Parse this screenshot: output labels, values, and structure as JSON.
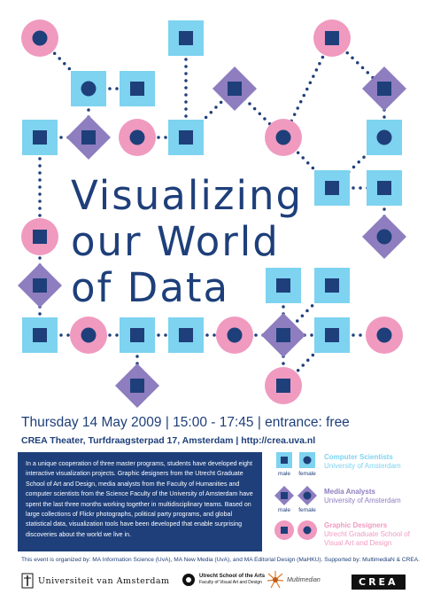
{
  "title_lines": [
    "Visualizing",
    "our World",
    "of Data"
  ],
  "event": {
    "date_time": "Thursday 14 May 2009 | 15:00 - 17:45 | entrance: free",
    "venue": "CREA Theater, Turfdraagsterpad 17, Amsterdam | http://crea.uva.nl"
  },
  "description": "In a unique cooperation of three master programs, students have developed eight interactive visualization projects. Graphic designers from the Utrecht Graduate School of Art and Design, media analysts from the Faculty of Humanities and computer scientists from the Science Faculty of the University of Amsterdam have spent the last three months working together in multidisciplinary teams. Based on large collections of Flickr photographs, political party programs, and global statistical data, visualization tools have been developed that enable surprising discoveries about the world we live in.",
  "legend": {
    "male_label": "male",
    "female_label": "female",
    "groups": [
      {
        "title": "Computer Scientists",
        "subtitle": "University of Amsterdam",
        "color": "#7dd3f0"
      },
      {
        "title": "Media Analysts",
        "subtitle": "University of Amsterdam",
        "color": "#8e7dbf"
      },
      {
        "title": "Graphic Designers",
        "subtitle": "Utrecht Graduate School of Visual Art and Design",
        "color": "#f09ac0"
      }
    ]
  },
  "organizers": "This event is organized by: MA Information Science (UvA), MA New Media (UvA), and MA Editorial Design (MaHKU). Supported by: MultimediaN & CREA.",
  "logos": {
    "uva": "Universiteit van Amsterdam",
    "utrecht_main": "Utrecht School of the Arts",
    "utrecht_sub": "Faculty of Visual Art and Design",
    "multimedian": "Multimedian",
    "crea": "CREA"
  },
  "colors": {
    "navy": "#1e3f7a",
    "blue": "#7dd3f0",
    "purple": "#8e7dbf",
    "pink": "#f09ac0"
  }
}
